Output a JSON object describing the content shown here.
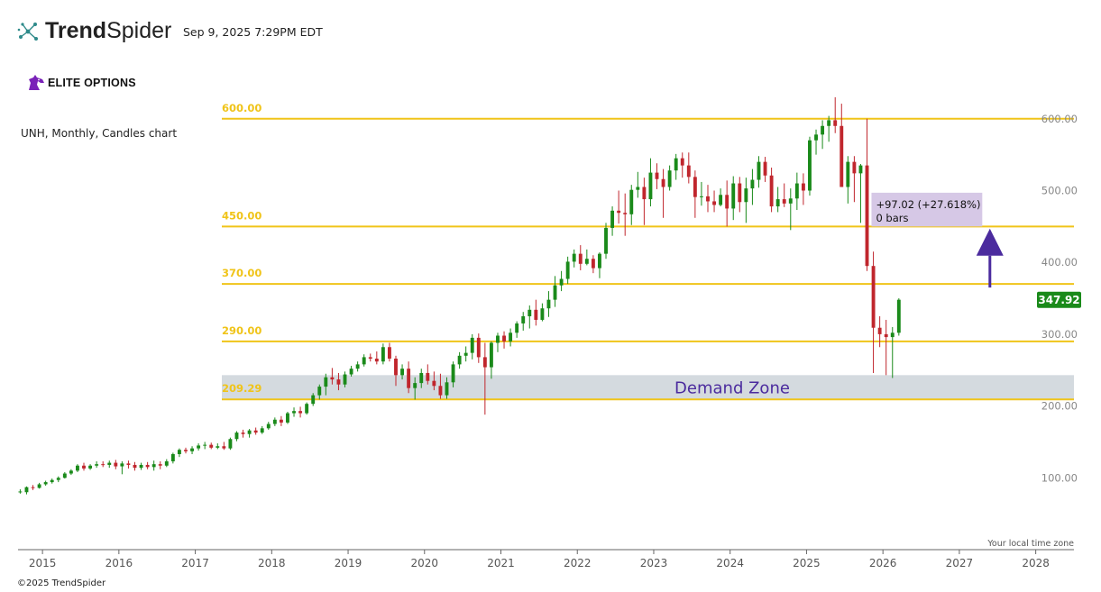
{
  "header": {
    "brand_bold": "Trend",
    "brand_light": "Spider",
    "timestamp": "Sep 9, 2025 7:29PM EDT",
    "watermark_logo": "ELITE OPTIONS",
    "logo_icon": "trendspider-molecule-icon",
    "elite_icon": "horse-head-icon"
  },
  "footer": {
    "copyright": "©2025 TrendSpider"
  },
  "chart_data": {
    "type": "candlestick",
    "title": "UNH, Monthly, Candles chart",
    "ticker": "UNH",
    "interval": "Monthly",
    "y_axis": {
      "min": 0,
      "max": 665,
      "ticks": [
        100,
        200,
        300,
        400,
        500,
        600
      ],
      "tick_labels": [
        "100.00",
        "200.00",
        "300.00",
        "400.00",
        "500.00",
        "600.00"
      ],
      "position": "right"
    },
    "x_axis": {
      "years": [
        "2015",
        "2016",
        "2017",
        "2018",
        "2019",
        "2020",
        "2021",
        "2022",
        "2023",
        "2024",
        "2025",
        "2026",
        "2027",
        "2028"
      ],
      "start": 2014.68,
      "end": 2028.5
    },
    "timezone_note": "Your local time zone",
    "last_price": {
      "value": 347.92,
      "label": "347.92",
      "color": "#1a8a1a"
    },
    "levels": [
      {
        "value": 600,
        "label": "600.00"
      },
      {
        "value": 450,
        "label": "450.00"
      },
      {
        "value": 370,
        "label": "370.00"
      },
      {
        "value": 290,
        "label": "290.00"
      },
      {
        "value": 209.29,
        "label": "209.29"
      }
    ],
    "level_color": "#f0c419",
    "demand_zone": {
      "low": 209.29,
      "high": 243,
      "label": "Demand Zone",
      "fill": "#d4dadf",
      "text_color": "#4b2b9e"
    },
    "measure_box": {
      "line1": "+97.02 (+27.618%)",
      "line2": "0 bars",
      "fill": "#d6c8e6",
      "from_year": 2025.85,
      "to_year": 2027.3,
      "low": 450,
      "high": 497
    },
    "arrow": {
      "year": 2027.4,
      "from": 365,
      "to": 447,
      "color": "#4b2b9e"
    },
    "colors": {
      "up": "#1a8a1a",
      "down": "#c0262d"
    },
    "candles_start": "2014-09",
    "ohlc": [
      [
        81,
        84,
        78,
        81
      ],
      [
        80,
        88,
        77,
        87
      ],
      [
        87,
        90,
        83,
        86
      ],
      [
        86,
        93,
        85,
        91
      ],
      [
        91,
        96,
        89,
        94
      ],
      [
        94,
        99,
        92,
        97
      ],
      [
        97,
        102,
        94,
        100
      ],
      [
        100,
        108,
        99,
        106
      ],
      [
        106,
        112,
        104,
        110
      ],
      [
        110,
        119,
        108,
        117
      ],
      [
        117,
        121,
        110,
        113
      ],
      [
        113,
        119,
        111,
        117
      ],
      [
        117,
        123,
        114,
        119
      ],
      [
        119,
        123,
        115,
        118
      ],
      [
        118,
        124,
        114,
        121
      ],
      [
        121,
        125,
        112,
        116
      ],
      [
        116,
        123,
        105,
        120
      ],
      [
        120,
        124,
        113,
        118
      ],
      [
        118,
        122,
        110,
        114
      ],
      [
        114,
        121,
        111,
        118
      ],
      [
        118,
        122,
        112,
        115
      ],
      [
        115,
        124,
        110,
        119
      ],
      [
        119,
        123,
        112,
        117
      ],
      [
        117,
        126,
        115,
        123
      ],
      [
        123,
        135,
        120,
        133
      ],
      [
        133,
        141,
        129,
        139
      ],
      [
        139,
        142,
        134,
        137
      ],
      [
        137,
        144,
        133,
        141
      ],
      [
        141,
        148,
        138,
        145
      ],
      [
        145,
        150,
        140,
        146
      ],
      [
        146,
        149,
        140,
        142
      ],
      [
        142,
        148,
        140,
        144
      ],
      [
        144,
        150,
        139,
        141
      ],
      [
        141,
        156,
        139,
        154
      ],
      [
        154,
        165,
        151,
        163
      ],
      [
        163,
        167,
        156,
        161
      ],
      [
        161,
        168,
        156,
        166
      ],
      [
        166,
        170,
        160,
        163
      ],
      [
        163,
        172,
        161,
        169
      ],
      [
        169,
        178,
        167,
        175
      ],
      [
        175,
        184,
        172,
        181
      ],
      [
        181,
        186,
        172,
        177
      ],
      [
        177,
        192,
        175,
        190
      ],
      [
        190,
        198,
        185,
        193
      ],
      [
        193,
        199,
        184,
        190
      ],
      [
        190,
        205,
        188,
        203
      ],
      [
        203,
        218,
        200,
        215
      ],
      [
        215,
        230,
        209,
        227
      ],
      [
        227,
        245,
        215,
        240
      ],
      [
        240,
        253,
        230,
        237
      ],
      [
        237,
        246,
        222,
        230
      ],
      [
        230,
        248,
        226,
        244
      ],
      [
        244,
        256,
        241,
        252
      ],
      [
        252,
        262,
        248,
        258
      ],
      [
        258,
        272,
        255,
        268
      ],
      [
        268,
        273,
        262,
        266
      ],
      [
        266,
        276,
        258,
        262
      ],
      [
        262,
        287,
        258,
        282
      ],
      [
        282,
        288,
        262,
        266
      ],
      [
        266,
        270,
        228,
        243
      ],
      [
        243,
        258,
        237,
        252
      ],
      [
        252,
        262,
        218,
        225
      ],
      [
        225,
        240,
        209,
        232
      ],
      [
        232,
        252,
        225,
        246
      ],
      [
        246,
        258,
        230,
        235
      ],
      [
        235,
        248,
        222,
        228
      ],
      [
        228,
        245,
        210,
        215
      ],
      [
        215,
        240,
        210,
        233
      ],
      [
        233,
        262,
        226,
        258
      ],
      [
        258,
        275,
        252,
        270
      ],
      [
        270,
        283,
        262,
        274
      ],
      [
        274,
        300,
        265,
        295
      ],
      [
        295,
        301,
        260,
        268
      ],
      [
        268,
        288,
        188,
        254
      ],
      [
        254,
        290,
        238,
        288
      ],
      [
        288,
        302,
        275,
        298
      ],
      [
        298,
        304,
        280,
        290
      ],
      [
        290,
        308,
        283,
        302
      ],
      [
        302,
        318,
        295,
        315
      ],
      [
        315,
        331,
        305,
        325
      ],
      [
        325,
        340,
        308,
        334
      ],
      [
        334,
        348,
        312,
        320
      ],
      [
        320,
        343,
        318,
        336
      ],
      [
        336,
        360,
        324,
        348
      ],
      [
        348,
        381,
        338,
        368
      ],
      [
        368,
        388,
        360,
        377
      ],
      [
        377,
        408,
        370,
        401
      ],
      [
        401,
        418,
        393,
        412
      ],
      [
        412,
        424,
        389,
        398
      ],
      [
        398,
        418,
        396,
        405
      ],
      [
        405,
        410,
        385,
        392
      ],
      [
        392,
        414,
        378,
        412
      ],
      [
        412,
        455,
        405,
        448
      ],
      [
        448,
        478,
        437,
        472
      ],
      [
        472,
        500,
        454,
        469
      ],
      [
        469,
        496,
        437,
        467
      ],
      [
        467,
        508,
        452,
        501
      ],
      [
        501,
        526,
        490,
        505
      ],
      [
        505,
        518,
        452,
        488
      ],
      [
        488,
        545,
        478,
        525
      ],
      [
        525,
        538,
        502,
        516
      ],
      [
        516,
        530,
        462,
        505
      ],
      [
        505,
        535,
        500,
        528
      ],
      [
        528,
        551,
        515,
        545
      ],
      [
        545,
        553,
        518,
        535
      ],
      [
        535,
        553,
        510,
        519
      ],
      [
        519,
        528,
        462,
        491
      ],
      [
        491,
        512,
        479,
        492
      ],
      [
        492,
        508,
        470,
        485
      ],
      [
        485,
        500,
        470,
        480
      ],
      [
        480,
        503,
        478,
        494
      ],
      [
        494,
        514,
        450,
        475
      ],
      [
        475,
        520,
        459,
        510
      ],
      [
        510,
        519,
        470,
        484
      ],
      [
        484,
        518,
        455,
        503
      ],
      [
        503,
        530,
        480,
        515
      ],
      [
        515,
        548,
        504,
        540
      ],
      [
        540,
        547,
        512,
        521
      ],
      [
        521,
        532,
        470,
        478
      ],
      [
        478,
        505,
        470,
        488
      ],
      [
        488,
        510,
        477,
        482
      ],
      [
        482,
        503,
        445,
        489
      ],
      [
        489,
        525,
        473,
        510
      ],
      [
        510,
        524,
        480,
        500
      ],
      [
        500,
        575,
        493,
        570
      ],
      [
        570,
        585,
        550,
        578
      ],
      [
        578,
        598,
        558,
        590
      ],
      [
        590,
        604,
        568,
        598
      ],
      [
        598,
        630,
        580,
        590
      ],
      [
        590,
        621,
        505,
        505
      ],
      [
        505,
        548,
        482,
        540
      ],
      [
        540,
        548,
        484,
        524
      ],
      [
        524,
        537,
        455,
        535
      ],
      [
        535,
        600,
        388,
        395
      ],
      [
        395,
        415,
        246,
        309
      ],
      [
        309,
        325,
        282,
        300
      ],
      [
        300,
        320,
        243,
        296
      ],
      [
        296,
        310,
        239,
        302
      ],
      [
        302,
        350,
        298,
        348
      ]
    ]
  }
}
